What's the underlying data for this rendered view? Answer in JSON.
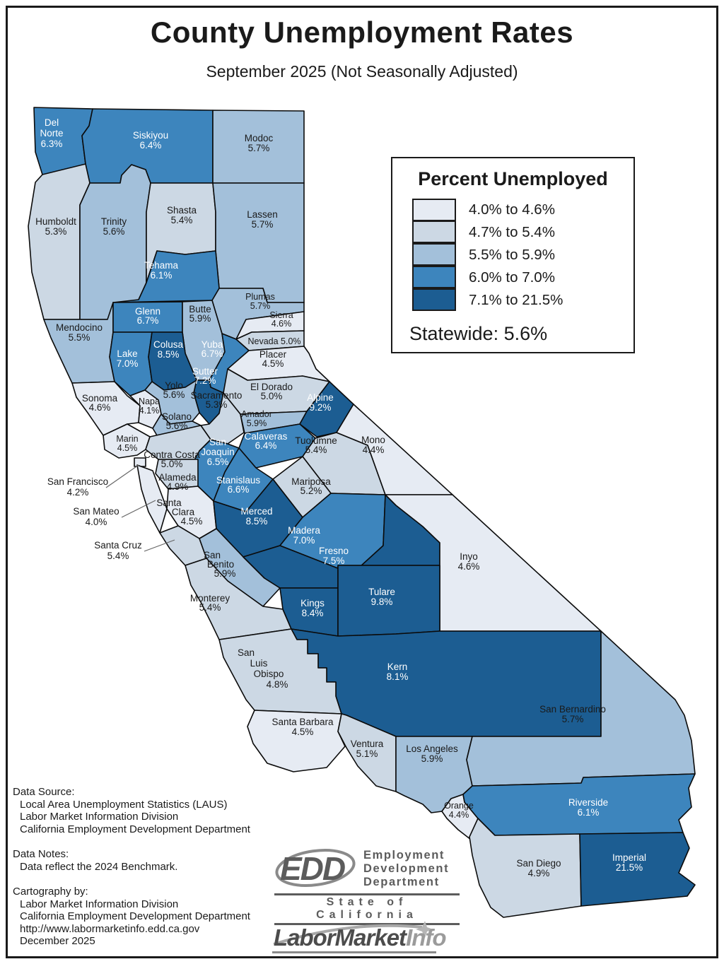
{
  "title": "County Unemployment Rates",
  "subtitle": "September 2025 (Not Seasonally Adjusted)",
  "legend": {
    "title": "Percent Unemployed",
    "bands": [
      {
        "range": "4.0% to 4.6%",
        "color": "#e6ebf3"
      },
      {
        "range": "4.7% to 5.4%",
        "color": "#ccd8e4"
      },
      {
        "range": "5.5% to 5.9%",
        "color": "#a3c0da"
      },
      {
        "range": "6.0% to 7.0%",
        "color": "#3d85bd"
      },
      {
        "range": "7.1% to 21.5%",
        "color": "#1c5d92"
      }
    ],
    "statewide": "Statewide: 5.6%"
  },
  "map": {
    "border_color": "#0b0b0b",
    "label_dark": "#1a1a1a",
    "label_light": "#ffffff",
    "leader_line_color": "#666666",
    "counties": [
      {
        "id": "del-norte",
        "name": "Del Norte",
        "rate": 6.3,
        "label_lines": [
          "Del",
          "Norte",
          "6.3%"
        ]
      },
      {
        "id": "siskiyou",
        "name": "Siskiyou",
        "rate": 6.4,
        "label_lines": [
          "Siskiyou",
          "6.4%"
        ]
      },
      {
        "id": "modoc",
        "name": "Modoc",
        "rate": 5.7,
        "label_lines": [
          "Modoc",
          "5.7%"
        ]
      },
      {
        "id": "humboldt",
        "name": "Humboldt",
        "rate": 5.3,
        "label_lines": [
          "Humboldt",
          "5.3%"
        ]
      },
      {
        "id": "trinity",
        "name": "Trinity",
        "rate": 5.6,
        "label_lines": [
          "Trinity",
          "5.6%"
        ]
      },
      {
        "id": "shasta",
        "name": "Shasta",
        "rate": 5.4,
        "label_lines": [
          "Shasta",
          "5.4%"
        ]
      },
      {
        "id": "lassen",
        "name": "Lassen",
        "rate": 5.7,
        "label_lines": [
          "Lassen",
          "5.7%"
        ]
      },
      {
        "id": "tehama",
        "name": "Tehama",
        "rate": 6.1,
        "label_lines": [
          "Tehama",
          "6.1%"
        ]
      },
      {
        "id": "plumas",
        "name": "Plumas",
        "rate": 5.7,
        "label_lines": [
          "Plumas",
          "5.7%"
        ]
      },
      {
        "id": "mendocino",
        "name": "Mendocino",
        "rate": 5.5,
        "label_lines": [
          "Mendocino",
          "5.5%"
        ]
      },
      {
        "id": "glenn",
        "name": "Glenn",
        "rate": 6.7,
        "label_lines": [
          "Glenn",
          "6.7%"
        ]
      },
      {
        "id": "butte",
        "name": "Butte",
        "rate": 5.9,
        "label_lines": [
          "Butte",
          "5.9%"
        ]
      },
      {
        "id": "sierra",
        "name": "Sierra",
        "rate": 4.6,
        "label_lines": [
          "Sierra",
          "4.6%"
        ]
      },
      {
        "id": "nevada",
        "name": "Nevada",
        "rate": 5.0,
        "label_lines": [
          "Nevada 5.0%"
        ]
      },
      {
        "id": "lake",
        "name": "Lake",
        "rate": 7.0,
        "label_lines": [
          "Lake",
          "7.0%"
        ]
      },
      {
        "id": "colusa",
        "name": "Colusa",
        "rate": 8.5,
        "label_lines": [
          "Colusa",
          "8.5%"
        ]
      },
      {
        "id": "yuba",
        "name": "Yuba",
        "rate": 6.7,
        "label_lines": [
          "Yuba",
          "6.7%"
        ]
      },
      {
        "id": "placer",
        "name": "Placer",
        "rate": 4.5,
        "label_lines": [
          "Placer",
          "4.5%"
        ]
      },
      {
        "id": "sutter",
        "name": "Sutter",
        "rate": 7.2,
        "label_lines": [
          "Sutter",
          "7.2%"
        ]
      },
      {
        "id": "el-dorado",
        "name": "El Dorado",
        "rate": 5.0,
        "label_lines": [
          "El Dorado",
          "5.0%"
        ]
      },
      {
        "id": "yolo",
        "name": "Yolo",
        "rate": 5.6,
        "label_lines": [
          "Yolo",
          "5.6%"
        ]
      },
      {
        "id": "sonoma",
        "name": "Sonoma",
        "rate": 4.6,
        "label_lines": [
          "Sonoma",
          "4.6%"
        ]
      },
      {
        "id": "napa",
        "name": "Napa",
        "rate": 4.1,
        "label_lines": [
          "Napa",
          "4.1%"
        ]
      },
      {
        "id": "sacramento",
        "name": "Sacramento",
        "rate": 5.3,
        "label_lines": [
          "Sacramento",
          "5.3%"
        ]
      },
      {
        "id": "amador",
        "name": "Amador",
        "rate": 5.9,
        "label_lines": [
          "Amador",
          "5.9%"
        ]
      },
      {
        "id": "solano",
        "name": "Solano",
        "rate": 5.6,
        "label_lines": [
          "Solano",
          "5.6%"
        ]
      },
      {
        "id": "alpine",
        "name": "Alpine",
        "rate": 9.2,
        "label_lines": [
          "Alpine",
          "9.2%"
        ]
      },
      {
        "id": "marin",
        "name": "Marin",
        "rate": 4.5,
        "label_lines": [
          "Marin",
          "4.5%"
        ]
      },
      {
        "id": "contra-costa",
        "name": "Contra Costa",
        "rate": 5.0,
        "label_lines": [
          "Contra Costa",
          "5.0%"
        ]
      },
      {
        "id": "san-joaquin",
        "name": "San Joaquin",
        "rate": 6.5,
        "label_lines": [
          "San",
          "Joaquin",
          "6.5%"
        ]
      },
      {
        "id": "calaveras",
        "name": "Calaveras",
        "rate": 6.4,
        "label_lines": [
          "Calaveras",
          "6.4%"
        ]
      },
      {
        "id": "tuolumne",
        "name": "Tuolumne",
        "rate": 5.4,
        "label_lines": [
          "Tuolumne",
          "5.4%"
        ]
      },
      {
        "id": "mono",
        "name": "Mono",
        "rate": 4.4,
        "label_lines": [
          "Mono",
          "4.4%"
        ]
      },
      {
        "id": "san-francisco",
        "name": "San Francisco",
        "rate": 4.2,
        "label_lines": [
          "San Francisco",
          "4.2%"
        ]
      },
      {
        "id": "alameda",
        "name": "Alameda",
        "rate": 4.9,
        "label_lines": [
          "Alameda",
          "4.9%"
        ]
      },
      {
        "id": "stanislaus",
        "name": "Stanislaus",
        "rate": 6.6,
        "label_lines": [
          "Stanislaus",
          "6.6%"
        ]
      },
      {
        "id": "mariposa",
        "name": "Mariposa",
        "rate": 5.2,
        "label_lines": [
          "Mariposa",
          "5.2%"
        ]
      },
      {
        "id": "san-mateo",
        "name": "San Mateo",
        "rate": 4.0,
        "label_lines": [
          "San Mateo",
          "4.0%"
        ]
      },
      {
        "id": "santa-clara",
        "name": "Santa Clara",
        "rate": 4.5,
        "label_lines": [
          "Santa",
          "Clara",
          "4.5%"
        ]
      },
      {
        "id": "merced",
        "name": "Merced",
        "rate": 8.5,
        "label_lines": [
          "Merced",
          "8.5%"
        ]
      },
      {
        "id": "madera",
        "name": "Madera",
        "rate": 7.0,
        "label_lines": [
          "Madera",
          "7.0%"
        ]
      },
      {
        "id": "santa-cruz",
        "name": "Santa Cruz",
        "rate": 5.4,
        "label_lines": [
          "Santa Cruz",
          "5.4%"
        ]
      },
      {
        "id": "san-benito",
        "name": "San Benito",
        "rate": 5.9,
        "label_lines": [
          "San",
          "Benito",
          "5.9%"
        ]
      },
      {
        "id": "fresno",
        "name": "Fresno",
        "rate": 7.5,
        "label_lines": [
          "Fresno",
          "7.5%"
        ]
      },
      {
        "id": "inyo",
        "name": "Inyo",
        "rate": 4.6,
        "label_lines": [
          "Inyo",
          "4.6%"
        ]
      },
      {
        "id": "monterey",
        "name": "Monterey",
        "rate": 5.4,
        "label_lines": [
          "Monterey",
          "5.4%"
        ]
      },
      {
        "id": "kings",
        "name": "Kings",
        "rate": 8.4,
        "label_lines": [
          "Kings",
          "8.4%"
        ]
      },
      {
        "id": "tulare",
        "name": "Tulare",
        "rate": 9.8,
        "label_lines": [
          "Tulare",
          "9.8%"
        ]
      },
      {
        "id": "kern",
        "name": "Kern",
        "rate": 8.1,
        "label_lines": [
          "Kern",
          "8.1%"
        ]
      },
      {
        "id": "san-luis-obispo",
        "name": "San Luis Obispo",
        "rate": 4.8,
        "label_lines": [
          "San",
          "Luis",
          "Obispo",
          "4.8%"
        ]
      },
      {
        "id": "santa-barbara",
        "name": "Santa Barbara",
        "rate": 4.5,
        "label_lines": [
          "Santa Barbara",
          "4.5%"
        ]
      },
      {
        "id": "ventura",
        "name": "Ventura",
        "rate": 5.1,
        "label_lines": [
          "Ventura",
          "5.1%"
        ]
      },
      {
        "id": "los-angeles",
        "name": "Los Angeles",
        "rate": 5.9,
        "label_lines": [
          "Los Angeles",
          "5.9%"
        ]
      },
      {
        "id": "orange",
        "name": "Orange",
        "rate": 4.4,
        "label_lines": [
          "Orange",
          "4.4%"
        ]
      },
      {
        "id": "san-bernardino",
        "name": "San Bernardino",
        "rate": 5.7,
        "label_lines": [
          "San Bernardino",
          "5.7%"
        ]
      },
      {
        "id": "riverside",
        "name": "Riverside",
        "rate": 6.1,
        "label_lines": [
          "Riverside",
          "6.1%"
        ]
      },
      {
        "id": "san-diego",
        "name": "San Diego",
        "rate": 4.9,
        "label_lines": [
          "San Diego",
          "4.9%"
        ]
      },
      {
        "id": "imperial",
        "name": "Imperial",
        "rate": 21.5,
        "label_lines": [
          "Imperial",
          "21.5%"
        ]
      }
    ]
  },
  "footer": {
    "sections": [
      {
        "heading": "Data Source:",
        "lines": [
          "Local Area Unemployment Statistics (LAUS)",
          "Labor Market Information Division",
          "California Employment Development Department"
        ]
      },
      {
        "heading": "Data Notes:",
        "lines": [
          "Data reflect the 2024 Benchmark."
        ]
      },
      {
        "heading": "Cartography by:",
        "lines": [
          "Labor Market Information Division",
          "California Employment Development Department",
          "http://www.labormarketinfo.edd.ca.gov",
          "December 2025"
        ]
      }
    ]
  },
  "logos": {
    "edd": {
      "acronym": "EDD",
      "dept_lines": [
        "Employment",
        "Development",
        "Department"
      ],
      "tagline": "State of California"
    },
    "labor_market_info": {
      "part1": "LaborMarket",
      "part2": "Info"
    }
  }
}
